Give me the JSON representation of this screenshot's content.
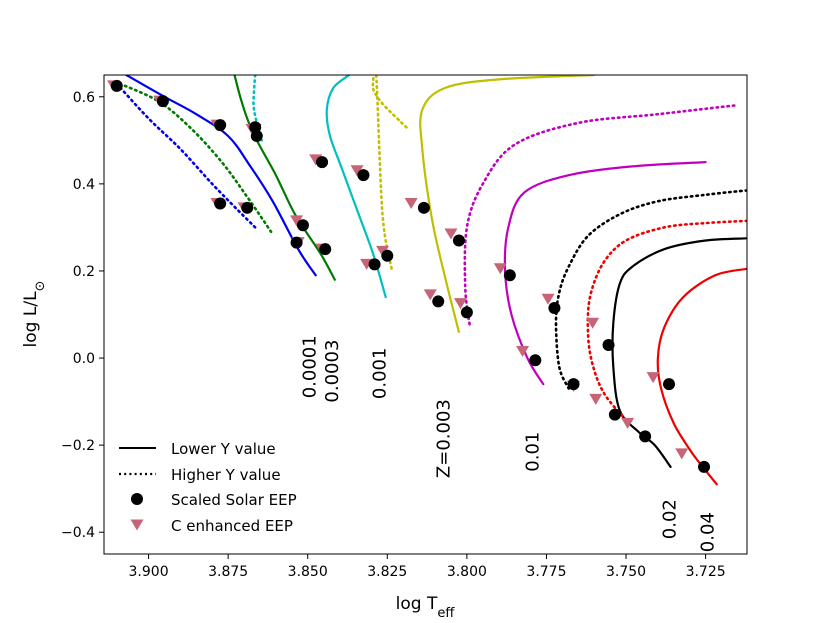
{
  "chart_data": {
    "type": "line",
    "title": "",
    "xlabel": {
      "base": "log T",
      "sub": "eff"
    },
    "ylabel": {
      "base": "log L/L",
      "sub": "⊙"
    },
    "xlim": [
      3.914,
      3.712
    ],
    "ylim": [
      -0.45,
      0.65
    ],
    "xticks": [
      3.9,
      3.875,
      3.85,
      3.825,
      3.8,
      3.775,
      3.75,
      3.725
    ],
    "xtick_labels": [
      "3.900",
      "3.875",
      "3.850",
      "3.825",
      "3.800",
      "3.775",
      "3.750",
      "3.725"
    ],
    "yticks": [
      -0.4,
      -0.2,
      0.0,
      0.2,
      0.4,
      0.6
    ],
    "ytick_labels": [
      "−0.4",
      "−0.2",
      "0.0",
      "0.2",
      "0.4",
      "0.6"
    ],
    "grid": false,
    "legend": {
      "position": "bottom-left",
      "entries": [
        {
          "label": "Lower Y value",
          "style": "solid-line"
        },
        {
          "label": "Higher Y value",
          "style": "dotted-line"
        },
        {
          "label": "Scaled Solar EEP",
          "style": "circle-marker",
          "color": "#000000"
        },
        {
          "label": "C enhanced EEP",
          "style": "triangle-marker",
          "color": "#c76478"
        }
      ]
    },
    "series": [
      {
        "name": "Z=0.0001 lower Y",
        "color": "#0000ee",
        "style": "solid",
        "x": [
          3.907,
          3.895,
          3.885,
          3.875,
          3.868,
          3.861,
          3.853,
          3.8475
        ],
        "y": [
          0.65,
          0.6,
          0.56,
          0.51,
          0.44,
          0.36,
          0.25,
          0.19
        ]
      },
      {
        "name": "Z=0.0001 higher Y",
        "color": "#0000ee",
        "style": "dotted",
        "x": [
          3.91,
          3.9,
          3.89,
          3.88,
          3.872,
          3.8665
        ],
        "y": [
          0.63,
          0.55,
          0.48,
          0.4,
          0.34,
          0.3
        ]
      },
      {
        "name": "Z=0.0003 lower Y",
        "color": "#007a00",
        "style": "solid",
        "x": [
          3.873,
          3.8712,
          3.869,
          3.866,
          3.86,
          3.854,
          3.846,
          3.8415
        ],
        "y": [
          0.65,
          0.6,
          0.55,
          0.5,
          0.42,
          0.33,
          0.24,
          0.18
        ]
      },
      {
        "name": "Z=0.0003 higher Y",
        "color": "#007a00",
        "style": "dotted",
        "x": [
          3.909,
          3.897,
          3.887,
          3.877,
          3.869,
          3.8615
        ],
        "y": [
          0.63,
          0.59,
          0.53,
          0.45,
          0.37,
          0.29
        ]
      },
      {
        "name": "Z=0.001 lower Y",
        "color": "#00bfbf",
        "style": "solid",
        "x": [
          3.837,
          3.842,
          3.844,
          3.843,
          3.839,
          3.834,
          3.8295,
          3.8255
        ],
        "y": [
          0.65,
          0.62,
          0.57,
          0.51,
          0.43,
          0.33,
          0.24,
          0.14
        ]
      },
      {
        "name": "Z=0.001 higher Y",
        "color": "#00bfbf",
        "style": "dotted",
        "x": [
          3.8665,
          3.8668,
          3.867,
          3.866,
          3.8645
        ],
        "y": [
          0.65,
          0.62,
          0.58,
          0.54,
          0.5
        ]
      },
      {
        "name": "Z=0.003 lower Y",
        "color": "#bfbf00",
        "style": "solid",
        "x": [
          3.76,
          3.79,
          3.807,
          3.814,
          3.814,
          3.811,
          3.807,
          3.8025
        ],
        "y": [
          0.65,
          0.64,
          0.62,
          0.57,
          0.48,
          0.32,
          0.19,
          0.06
        ]
      },
      {
        "name": "Z=0.003 higher Y",
        "color": "#bfbf00",
        "style": "dotted",
        "x": [
          3.819,
          3.826,
          3.829,
          3.8295,
          3.8285,
          3.8265,
          3.8235
        ],
        "y": [
          0.53,
          0.58,
          0.61,
          0.63,
          0.65,
          0.33,
          0.2
        ]
      },
      {
        "name": "Z=0.01 lower Y",
        "color": "#bf00bf",
        "style": "solid",
        "x": [
          3.725,
          3.748,
          3.768,
          3.782,
          3.787,
          3.788,
          3.786,
          3.781,
          3.776
        ],
        "y": [
          0.45,
          0.44,
          0.42,
          0.38,
          0.3,
          0.2,
          0.1,
          0.0,
          -0.06
        ]
      },
      {
        "name": "Z=0.01 higher Y",
        "color": "#bf00bf",
        "style": "dotted",
        "x": [
          3.716,
          3.74,
          3.765,
          3.785,
          3.795,
          3.8,
          3.8005,
          3.799
        ],
        "y": [
          0.58,
          0.56,
          0.54,
          0.49,
          0.4,
          0.3,
          0.16,
          0.07
        ]
      },
      {
        "name": "Z=0.02 lower Y",
        "color": "#000000",
        "style": "solid",
        "x": [
          3.712,
          3.725,
          3.738,
          3.748,
          3.752,
          3.754,
          3.754,
          3.752,
          3.746,
          3.741,
          3.736
        ],
        "y": [
          0.275,
          0.27,
          0.25,
          0.21,
          0.17,
          0.08,
          -0.02,
          -0.12,
          -0.17,
          -0.2,
          -0.25
        ]
      },
      {
        "name": "Z=0.02 higher Y",
        "color": "#000000",
        "style": "dotted",
        "x": [
          3.712,
          3.725,
          3.74,
          3.752,
          3.762,
          3.768,
          3.771,
          3.772,
          3.771,
          3.768
        ],
        "y": [
          0.385,
          0.375,
          0.36,
          0.33,
          0.28,
          0.21,
          0.15,
          0.08,
          -0.02,
          -0.07
        ]
      },
      {
        "name": "Z=0.04 lower Y",
        "color": "#ee0000",
        "style": "solid",
        "x": [
          3.712,
          3.722,
          3.732,
          3.738,
          3.74,
          3.739,
          3.735,
          3.73,
          3.727,
          3.7215
        ],
        "y": [
          0.205,
          0.19,
          0.14,
          0.07,
          0.0,
          -0.07,
          -0.15,
          -0.21,
          -0.24,
          -0.29
        ]
      },
      {
        "name": "Z=0.04 higher Y",
        "color": "#ee0000",
        "style": "dotted",
        "x": [
          3.712,
          3.725,
          3.738,
          3.75,
          3.757,
          3.761,
          3.762,
          3.761,
          3.757,
          3.749
        ],
        "y": [
          0.315,
          0.31,
          0.3,
          0.27,
          0.22,
          0.15,
          0.08,
          0.0,
          -0.08,
          -0.15
        ]
      }
    ],
    "scaled_solar_eep": {
      "x": [
        3.91,
        3.8955,
        3.8775,
        3.866,
        3.8775,
        3.869,
        3.8665,
        3.8515,
        3.8535,
        3.8455,
        3.8445,
        3.8325,
        3.829,
        3.825,
        3.8135,
        3.809,
        3.8025,
        3.8,
        3.7865,
        3.7785,
        3.7725,
        3.7665,
        3.7555,
        3.7535,
        3.744,
        3.7365,
        3.7255
      ],
      "y": [
        0.625,
        0.59,
        0.535,
        0.51,
        0.355,
        0.345,
        0.53,
        0.305,
        0.265,
        0.45,
        0.25,
        0.42,
        0.215,
        0.235,
        0.345,
        0.13,
        0.27,
        0.105,
        0.19,
        -0.005,
        0.115,
        -0.06,
        0.03,
        -0.13,
        -0.18,
        -0.06,
        -0.25
      ]
    },
    "c_enhanced_eep": {
      "x": [
        3.911,
        3.8965,
        3.8785,
        3.8665,
        3.8785,
        3.87,
        3.8675,
        3.8535,
        3.853,
        3.8475,
        3.8455,
        3.8345,
        3.8315,
        3.8265,
        3.8175,
        3.8115,
        3.805,
        3.802,
        3.7895,
        3.7825,
        3.7745,
        3.7665,
        3.7605,
        3.7595,
        3.7495,
        3.7415,
        3.7325
      ],
      "y": [
        0.625,
        0.59,
        0.535,
        0.525,
        0.355,
        0.345,
        0.525,
        0.315,
        0.265,
        0.455,
        0.25,
        0.43,
        0.215,
        0.245,
        0.355,
        0.145,
        0.285,
        0.125,
        0.205,
        0.015,
        0.135,
        -0.065,
        0.08,
        -0.095,
        -0.15,
        -0.045,
        -0.22
      ]
    },
    "annotations": [
      {
        "text": "0.0001",
        "x": 3.8475,
        "y": -0.02,
        "rotation": -90
      },
      {
        "text": "0.0003",
        "x": 3.8405,
        "y": -0.03,
        "rotation": -90
      },
      {
        "text": "0.001",
        "x": 3.8255,
        "y": -0.035,
        "rotation": -90
      },
      {
        "text": "Z=0.003",
        "x": 3.8055,
        "y": -0.185,
        "rotation": -90
      },
      {
        "text": "0.01",
        "x": 3.7775,
        "y": -0.215,
        "rotation": -90
      },
      {
        "text": "0.02",
        "x": 3.7345,
        "y": -0.37,
        "rotation": -90
      },
      {
        "text": "0.04",
        "x": 3.7225,
        "y": -0.4,
        "rotation": -90
      }
    ]
  }
}
